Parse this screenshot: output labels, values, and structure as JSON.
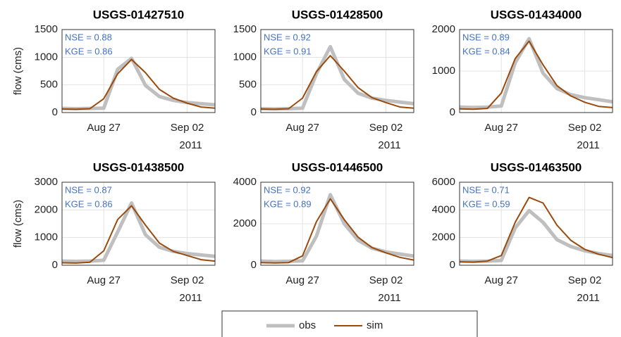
{
  "chart_data": [
    {
      "type": "line",
      "title": "USGS-01427510",
      "ylabel": "flow (cms)",
      "x": [
        "2011-08-24",
        "2011-08-25",
        "2011-08-26",
        "2011-08-27",
        "2011-08-28",
        "2011-08-29",
        "2011-08-30",
        "2011-08-31",
        "2011-09-01",
        "2011-09-02",
        "2011-09-03",
        "2011-09-04"
      ],
      "xlim": [
        "2011-08-24",
        "2011-09-04"
      ],
      "xticks": [
        {
          "value": "2011-08-27",
          "label": "Aug 27"
        },
        {
          "value": "2011-09-02",
          "label": "Sep 02"
        }
      ],
      "xtick_year": "2011",
      "ylim": [
        0,
        1500
      ],
      "yticks": [
        0,
        500,
        1000,
        1500
      ],
      "grid": true,
      "annotations": [
        "NSE = 0.88",
        "KGE = 0.86"
      ],
      "series": [
        {
          "name": "obs",
          "color": "#bfbfbf",
          "values": [
            75,
            70,
            75,
            80,
            780,
            980,
            490,
            290,
            220,
            180,
            160,
            140
          ]
        },
        {
          "name": "sim",
          "color": "#9a4a0c",
          "values": [
            65,
            60,
            70,
            250,
            700,
            960,
            720,
            420,
            260,
            170,
            100,
            80
          ]
        }
      ]
    },
    {
      "type": "line",
      "title": "USGS-01428500",
      "x": [
        "2011-08-24",
        "2011-08-25",
        "2011-08-26",
        "2011-08-27",
        "2011-08-28",
        "2011-08-29",
        "2011-08-30",
        "2011-08-31",
        "2011-09-01",
        "2011-09-02",
        "2011-09-03",
        "2011-09-04"
      ],
      "xlim": [
        "2011-08-24",
        "2011-09-04"
      ],
      "xticks": [
        {
          "value": "2011-08-27",
          "label": "Aug 27"
        },
        {
          "value": "2011-09-02",
          "label": "Sep 02"
        }
      ],
      "xtick_year": "2011",
      "ylim": [
        0,
        1500
      ],
      "yticks": [
        0,
        500,
        1000,
        1500
      ],
      "grid": true,
      "annotations": [
        "NSE = 0.92",
        "KGE = 0.91"
      ],
      "series": [
        {
          "name": "obs",
          "color": "#bfbfbf",
          "values": [
            70,
            65,
            70,
            80,
            700,
            1190,
            600,
            350,
            260,
            220,
            190,
            160
          ]
        },
        {
          "name": "sim",
          "color": "#9a4a0c",
          "values": [
            65,
            60,
            70,
            260,
            740,
            1030,
            750,
            450,
            270,
            180,
            100,
            80
          ]
        }
      ]
    },
    {
      "type": "line",
      "title": "USGS-01434000",
      "x": [
        "2011-08-24",
        "2011-08-25",
        "2011-08-26",
        "2011-08-27",
        "2011-08-28",
        "2011-08-29",
        "2011-08-30",
        "2011-08-31",
        "2011-09-01",
        "2011-09-02",
        "2011-09-03",
        "2011-09-04"
      ],
      "xlim": [
        "2011-08-24",
        "2011-09-04"
      ],
      "xticks": [
        {
          "value": "2011-08-27",
          "label": "Aug 27"
        },
        {
          "value": "2011-09-02",
          "label": "Sep 02"
        }
      ],
      "xtick_year": "2011",
      "ylim": [
        0,
        2000
      ],
      "yticks": [
        0,
        1000,
        2000
      ],
      "grid": true,
      "annotations": [
        "NSE = 0.89",
        "KGE = 0.84"
      ],
      "series": [
        {
          "name": "obs",
          "color": "#bfbfbf",
          "values": [
            130,
            120,
            130,
            160,
            1200,
            1780,
            950,
            580,
            430,
            360,
            310,
            260
          ]
        },
        {
          "name": "sim",
          "color": "#9a4a0c",
          "values": [
            90,
            80,
            100,
            470,
            1300,
            1720,
            1150,
            650,
            400,
            250,
            150,
            120
          ]
        }
      ]
    },
    {
      "type": "line",
      "title": "USGS-01438500",
      "ylabel": "flow (cms)",
      "x": [
        "2011-08-24",
        "2011-08-25",
        "2011-08-26",
        "2011-08-27",
        "2011-08-28",
        "2011-08-29",
        "2011-08-30",
        "2011-08-31",
        "2011-09-01",
        "2011-09-02",
        "2011-09-03",
        "2011-09-04"
      ],
      "xlim": [
        "2011-08-24",
        "2011-09-04"
      ],
      "xticks": [
        {
          "value": "2011-08-27",
          "label": "Aug 27"
        },
        {
          "value": "2011-09-02",
          "label": "Sep 02"
        }
      ],
      "xtick_year": "2011",
      "ylim": [
        0,
        3000
      ],
      "yticks": [
        0,
        1000,
        2000,
        3000
      ],
      "grid": true,
      "annotations": [
        "NSE = 0.87",
        "KGE = 0.86"
      ],
      "series": [
        {
          "name": "obs",
          "color": "#bfbfbf",
          "values": [
            150,
            140,
            150,
            180,
            1200,
            2250,
            1100,
            650,
            500,
            420,
            370,
            320
          ]
        },
        {
          "name": "sim",
          "color": "#9a4a0c",
          "values": [
            90,
            80,
            110,
            520,
            1650,
            2150,
            1450,
            800,
            500,
            350,
            200,
            150
          ]
        }
      ]
    },
    {
      "type": "line",
      "title": "USGS-01446500",
      "x": [
        "2011-08-24",
        "2011-08-25",
        "2011-08-26",
        "2011-08-27",
        "2011-08-28",
        "2011-08-29",
        "2011-08-30",
        "2011-08-31",
        "2011-09-01",
        "2011-09-02",
        "2011-09-03",
        "2011-09-04"
      ],
      "xlim": [
        "2011-08-24",
        "2011-09-04"
      ],
      "xticks": [
        {
          "value": "2011-08-27",
          "label": "Aug 27"
        },
        {
          "value": "2011-09-02",
          "label": "Sep 02"
        }
      ],
      "xtick_year": "2011",
      "ylim": [
        0,
        4000
      ],
      "yticks": [
        0,
        2000,
        4000
      ],
      "grid": true,
      "annotations": [
        "NSE = 0.92",
        "KGE = 0.89"
      ],
      "series": [
        {
          "name": "obs",
          "color": "#bfbfbf",
          "values": [
            200,
            180,
            190,
            210,
            1400,
            3400,
            2000,
            1200,
            820,
            640,
            540,
            440
          ]
        },
        {
          "name": "sim",
          "color": "#9a4a0c",
          "values": [
            130,
            110,
            130,
            450,
            2100,
            3200,
            2200,
            1350,
            850,
            600,
            380,
            250
          ]
        }
      ]
    },
    {
      "type": "line",
      "title": "USGS-01463500",
      "x": [
        "2011-08-24",
        "2011-08-25",
        "2011-08-26",
        "2011-08-27",
        "2011-08-28",
        "2011-08-29",
        "2011-08-30",
        "2011-08-31",
        "2011-09-01",
        "2011-09-02",
        "2011-09-03",
        "2011-09-04"
      ],
      "xlim": [
        "2011-08-24",
        "2011-09-04"
      ],
      "xticks": [
        {
          "value": "2011-08-27",
          "label": "Aug 27"
        },
        {
          "value": "2011-09-02",
          "label": "Sep 02"
        }
      ],
      "xtick_year": "2011",
      "ylim": [
        0,
        6000
      ],
      "yticks": [
        0,
        2000,
        4000,
        6000
      ],
      "grid": true,
      "annotations": [
        "NSE = 0.71",
        "KGE = 0.59"
      ],
      "series": [
        {
          "name": "obs",
          "color": "#bfbfbf",
          "values": [
            300,
            280,
            300,
            350,
            2700,
            3950,
            3100,
            1850,
            1350,
            1050,
            850,
            700
          ]
        },
        {
          "name": "sim",
          "color": "#9a4a0c",
          "values": [
            250,
            230,
            300,
            700,
            3100,
            4900,
            4500,
            2900,
            1800,
            1150,
            800,
            550
          ]
        }
      ]
    }
  ]
}
